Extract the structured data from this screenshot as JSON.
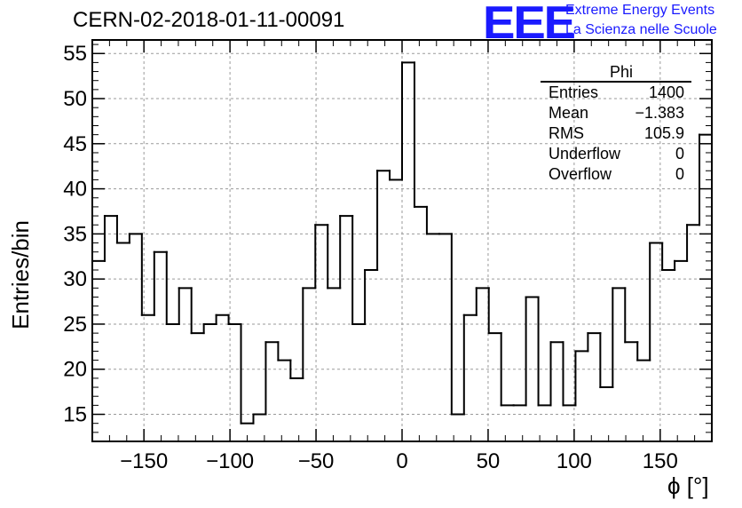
{
  "title": "CERN-02-2018-01-11-00091",
  "logo": {
    "mark": "EEE",
    "line1": "Extreme Energy Events",
    "line2": "La Scienza nelle Scuole",
    "color": "#1a1aff"
  },
  "stats_box": {
    "name": "Phi",
    "rows": [
      {
        "label": "Entries",
        "value": "1400"
      },
      {
        "label": "Mean",
        "value": "−1.383"
      },
      {
        "label": "RMS",
        "value": "105.9"
      },
      {
        "label": "Underflow",
        "value": "0"
      },
      {
        "label": "Overflow",
        "value": "0"
      }
    ]
  },
  "chart_data": {
    "type": "bar",
    "style": "step-histogram",
    "title": "CERN-02-2018-01-11-00091",
    "xlabel": "ϕ [°]",
    "ylabel": "Entries/bin",
    "xlim": [
      -180,
      180
    ],
    "ylim": [
      12,
      56.5
    ],
    "bin_width": 7.2,
    "xticks": [
      -150,
      -100,
      -50,
      0,
      50,
      100,
      150
    ],
    "xtick_labels": [
      "−150",
      "−100",
      "−50",
      "0",
      "50",
      "100",
      "150"
    ],
    "yticks": [
      15,
      20,
      25,
      30,
      35,
      40,
      45,
      50,
      55
    ],
    "ytick_labels": [
      "15",
      "20",
      "25",
      "30",
      "35",
      "40",
      "45",
      "50",
      "55"
    ],
    "grid": true,
    "legend": "none",
    "line_color": "#000000",
    "grid_color": "#9a9a9a",
    "values": [
      32,
      37,
      34,
      35,
      26,
      33,
      25,
      29,
      24,
      25,
      26,
      25,
      14,
      15,
      23,
      21,
      19,
      29,
      36,
      29,
      37,
      25,
      31,
      42,
      41,
      54,
      38,
      35,
      35,
      15,
      26,
      29,
      24,
      16,
      16,
      28,
      16,
      23,
      16,
      22,
      24,
      18,
      29,
      23,
      21,
      34,
      31,
      32,
      36,
      46
    ]
  }
}
